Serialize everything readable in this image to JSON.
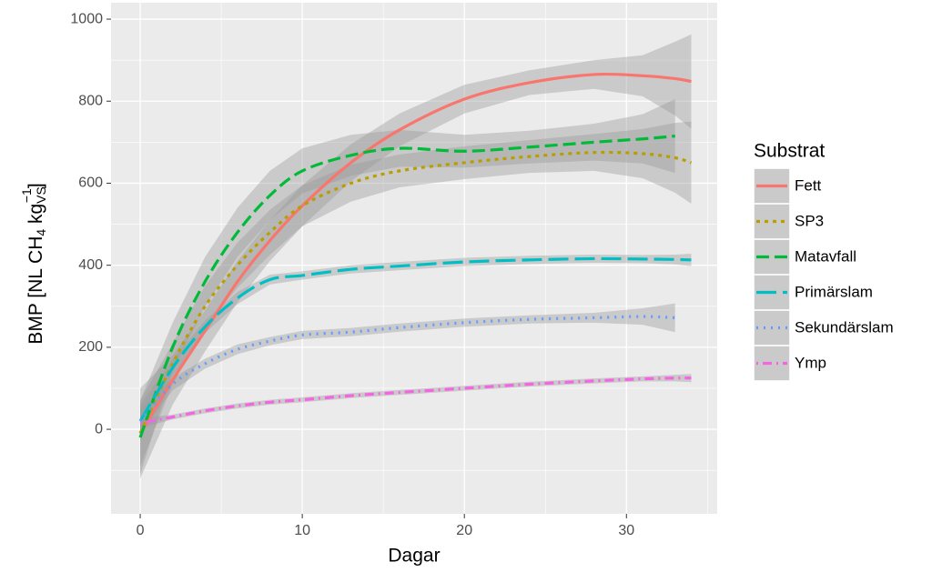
{
  "chart_data": {
    "type": "line",
    "xlabel": "Dagar",
    "ylabel": [
      "BMP [NL CH",
      "4",
      " kg",
      "VS",
      "−1",
      "]"
    ],
    "legend_title": "Substrat",
    "legend": "right",
    "grid": true,
    "band_color": "#999999",
    "xlim": [
      -1.8,
      35.6
    ],
    "ylim": [
      -206,
      1040
    ],
    "xticks": [
      0,
      10,
      20,
      30
    ],
    "yticks": [
      0,
      200,
      400,
      600,
      800,
      1000
    ],
    "x": [
      0,
      2,
      4,
      6,
      8,
      10,
      13,
      16,
      20,
      24,
      28,
      31,
      33,
      34
    ],
    "series": [
      {
        "name": "Fett",
        "color": "#F8766D",
        "dash": "solid",
        "values": [
          -10,
          120,
          240,
          360,
          460,
          545,
          650,
          730,
          805,
          845,
          865,
          862,
          855,
          848
        ],
        "lower": [
          -120,
          60,
          190,
          310,
          410,
          495,
          605,
          690,
          770,
          815,
          830,
          812,
          765,
          733
        ],
        "upper": [
          100,
          180,
          290,
          410,
          510,
          595,
          695,
          770,
          840,
          875,
          900,
          912,
          945,
          963
        ]
      },
      {
        "name": "SP3",
        "color": "#B79F00",
        "dash": "dotted",
        "values": [
          -10,
          160,
          300,
          400,
          480,
          545,
          600,
          630,
          650,
          665,
          675,
          672,
          662,
          650
        ],
        "lower": [
          -90,
          110,
          250,
          345,
          425,
          495,
          555,
          590,
          610,
          625,
          630,
          612,
          577,
          550
        ],
        "upper": [
          70,
          210,
          350,
          455,
          535,
          595,
          645,
          670,
          690,
          705,
          720,
          732,
          747,
          750
        ]
      },
      {
        "name": "Matavfall",
        "color": "#00BA38",
        "dash": "dashed",
        "values": [
          -20,
          200,
          360,
          480,
          570,
          630,
          668,
          685,
          678,
          688,
          700,
          708,
          715,
          null
        ],
        "lower": [
          -110,
          140,
          300,
          420,
          510,
          575,
          618,
          640,
          638,
          648,
          655,
          648,
          625,
          null
        ],
        "upper": [
          70,
          260,
          420,
          540,
          630,
          685,
          718,
          730,
          718,
          728,
          745,
          768,
          805,
          null
        ]
      },
      {
        "name": "Primärslam",
        "color": "#00BFC4",
        "dash": "longdash",
        "values": [
          20,
          150,
          250,
          320,
          365,
          375,
          390,
          398,
          408,
          413,
          416,
          415,
          414,
          413
        ],
        "lower": [
          -20,
          130,
          235,
          305,
          353,
          365,
          380,
          388,
          398,
          403,
          406,
          405,
          402,
          398
        ],
        "upper": [
          60,
          170,
          265,
          335,
          377,
          385,
          400,
          408,
          418,
          423,
          426,
          425,
          426,
          428
        ]
      },
      {
        "name": "Sekundärslam",
        "color": "#619CFF",
        "dash": "dot",
        "values": [
          20,
          110,
          160,
          195,
          215,
          230,
          237,
          248,
          260,
          268,
          272,
          275,
          272,
          null
        ],
        "lower": [
          -10,
          95,
          148,
          183,
          205,
          220,
          227,
          238,
          250,
          258,
          260,
          255,
          237,
          null
        ],
        "upper": [
          50,
          125,
          172,
          207,
          225,
          240,
          247,
          258,
          270,
          278,
          284,
          295,
          307,
          null
        ]
      },
      {
        "name": "Ymp",
        "color": "#F564E3",
        "dash": "dotdash",
        "values": [
          15,
          30,
          45,
          57,
          66,
          72,
          82,
          90,
          100,
          110,
          118,
          123,
          125,
          125
        ],
        "lower": [
          3,
          24,
          39,
          51,
          60,
          66,
          76,
          84,
          94,
          104,
          112,
          117,
          117,
          115
        ],
        "upper": [
          27,
          36,
          51,
          63,
          72,
          78,
          88,
          96,
          106,
          116,
          124,
          129,
          133,
          135
        ]
      }
    ]
  }
}
